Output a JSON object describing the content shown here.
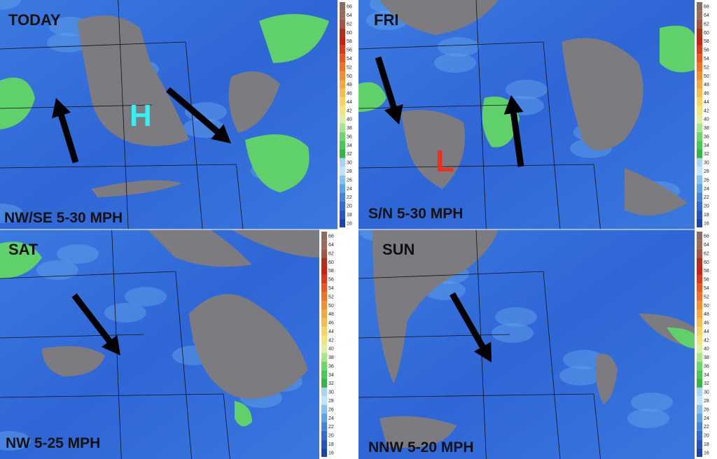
{
  "panels": [
    {
      "title": "TODAY",
      "wind": "NW/SE 5-30 MPH",
      "pressure": "H"
    },
    {
      "title": "FRI",
      "wind": "S/N 5-30 MPH",
      "pressure": "L"
    },
    {
      "title": "SAT",
      "wind": "NW 5-25 MPH"
    },
    {
      "title": "SUN",
      "wind": "NNW 5-20 MPH"
    }
  ],
  "colorbar": {
    "ticks": [
      66,
      64,
      62,
      60,
      58,
      56,
      54,
      52,
      50,
      48,
      46,
      44,
      42,
      40,
      38,
      36,
      34,
      32,
      30,
      28,
      26,
      24,
      22,
      20,
      18,
      16
    ],
    "colors": [
      "#8a6d62",
      "#9a6a5c",
      "#a45645",
      "#b0301f",
      "#cc1f12",
      "#e2361a",
      "#ec5420",
      "#f07224",
      "#f28e32",
      "#f4a640",
      "#f5bd50",
      "#f5d462",
      "#f3e47c",
      "#dff0a2",
      "#a6e691",
      "#6cd86a",
      "#45c857",
      "#34b548",
      "#a6d4f2",
      "#c2e4f8",
      "#86c2f0",
      "#5ea2e8",
      "#4384e0",
      "#3469d6",
      "#2753c6",
      "#1c42b0"
    ]
  }
}
